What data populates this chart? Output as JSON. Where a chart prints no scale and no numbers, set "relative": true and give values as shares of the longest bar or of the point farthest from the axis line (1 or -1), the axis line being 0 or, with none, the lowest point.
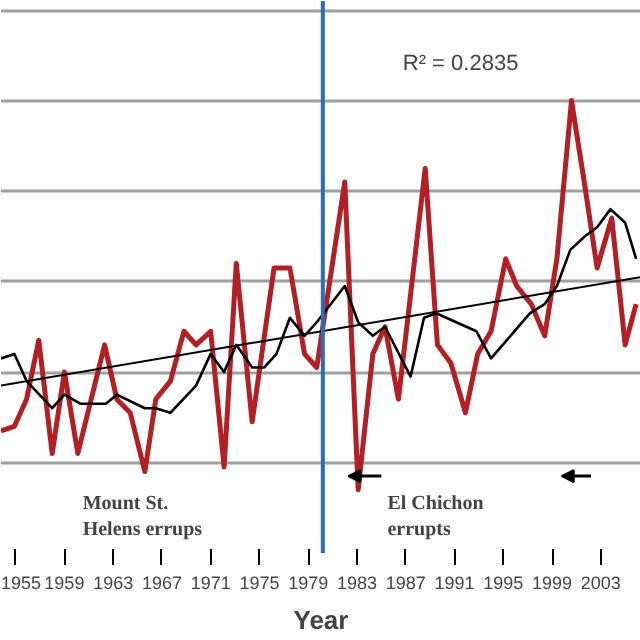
{
  "chart_data": {
    "type": "line",
    "relative": true,
    "xlabel": "Year",
    "xlim": [
      1953.8,
      2006.3
    ],
    "xticks": [
      1955,
      1959,
      1963,
      1967,
      1971,
      1975,
      1979,
      1983,
      1987,
      1991,
      1995,
      1999,
      2003
    ],
    "grid": "y",
    "marker": "none",
    "line_style": "solid",
    "series": [
      {
        "color": "#b22025",
        "x": [
          1953.8,
          1954.9,
          1955.9,
          1956.9,
          1958.0,
          1959.0,
          1960.1,
          1962.3,
          1963.3,
          1964.4,
          1965.6,
          1966.5,
          1967.7,
          1968.8,
          1969.8,
          1971.0,
          1972.1,
          1973.1,
          1974.4,
          1976.2,
          1977.5,
          1978.7,
          1979.7,
          1982.0,
          1983.1,
          1984.3,
          1985.3,
          1986.4,
          1988.6,
          1989.6,
          1990.7,
          1991.9,
          1992.9,
          1994.0,
          1995.2,
          1996.1,
          1997.3,
          1998.4,
          1999.4,
          2000.6,
          2001.7,
          2002.7,
          2003.9,
          2005.0,
          2005.9
        ],
        "values": [
          0.27,
          0.28,
          0.34,
          0.47,
          0.22,
          0.4,
          0.22,
          0.46,
          0.34,
          0.31,
          0.18,
          0.34,
          0.38,
          0.49,
          0.46,
          0.49,
          0.19,
          0.64,
          0.29,
          0.63,
          0.63,
          0.44,
          0.41,
          0.82,
          0.14,
          0.44,
          0.5,
          0.34,
          0.85,
          0.46,
          0.42,
          0.31,
          0.44,
          0.49,
          0.65,
          0.59,
          0.55,
          0.48,
          0.65,
          1.0,
          0.81,
          0.63,
          0.74,
          0.46,
          0.55
        ]
      },
      {
        "color": "#000000",
        "x": [
          1953.8,
          1954.9,
          1955.9,
          1958.0,
          1959.0,
          1960.3,
          1962.4,
          1963.3,
          1965.6,
          1966.5,
          1967.7,
          1969.8,
          1971.0,
          1972.1,
          1973.1,
          1974.4,
          1975.4,
          1976.4,
          1977.5,
          1978.7,
          1979.7,
          1982.0,
          1983.1,
          1984.3,
          1985.3,
          1987.4,
          1988.5,
          1989.5,
          1992.8,
          1994.0,
          1997.2,
          1998.4,
          1999.4,
          2000.5,
          2001.7,
          2002.7,
          2003.8,
          2005.0,
          2005.9
        ],
        "values": [
          0.43,
          0.44,
          0.38,
          0.32,
          0.35,
          0.33,
          0.33,
          0.35,
          0.32,
          0.32,
          0.31,
          0.37,
          0.44,
          0.4,
          0.46,
          0.41,
          0.41,
          0.44,
          0.52,
          0.48,
          0.51,
          0.59,
          0.51,
          0.48,
          0.5,
          0.39,
          0.52,
          0.53,
          0.49,
          0.43,
          0.53,
          0.55,
          0.59,
          0.67,
          0.7,
          0.72,
          0.76,
          0.73,
          0.65
        ]
      },
      {
        "color": "#000000",
        "x": [
          1953.8,
          2006.3
        ],
        "values": [
          0.37,
          0.61
        ]
      }
    ],
    "ref_lines": [
      {
        "axis": "x",
        "value": 1980.2,
        "color": "#2e6db4"
      }
    ],
    "annotations": [
      "R² = 0.2835",
      "Mount St. Helens errups",
      "El Chichon errupts"
    ]
  }
}
